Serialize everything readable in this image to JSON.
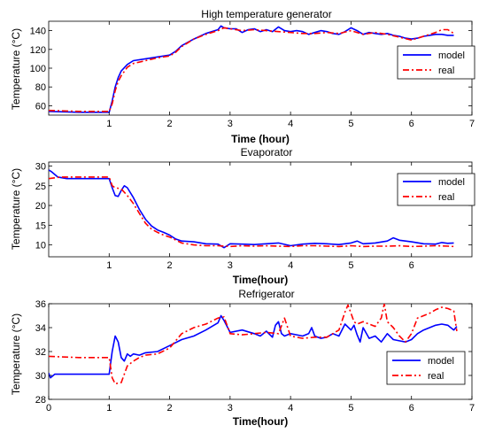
{
  "chart_data": [
    {
      "type": "line",
      "title": "High temperature generator",
      "xlabel": "Time (hour)",
      "ylabel": "Temperature (°C)",
      "xlim": [
        0,
        7
      ],
      "ylim": [
        50,
        150
      ],
      "xticks": [
        1,
        2,
        3,
        4,
        5,
        6,
        7
      ],
      "yticks": [
        60,
        80,
        100,
        120,
        140
      ],
      "legend_position": "right",
      "series": [
        {
          "name": "model",
          "color": "#0000ff",
          "dash": "solid",
          "x": [
            0,
            0.5,
            1.0,
            1.05,
            1.1,
            1.15,
            1.2,
            1.3,
            1.4,
            1.6,
            1.8,
            2.0,
            2.1,
            2.2,
            2.4,
            2.6,
            2.8,
            2.85,
            2.9,
            3.0,
            3.1,
            3.2,
            3.3,
            3.4,
            3.5,
            3.6,
            3.7,
            3.8,
            3.9,
            4.0,
            4.1,
            4.2,
            4.3,
            4.4,
            4.5,
            4.6,
            4.7,
            4.8,
            4.9,
            5.0,
            5.1,
            5.2,
            5.3,
            5.4,
            5.5,
            5.6,
            5.7,
            5.8,
            5.9,
            6.0,
            6.1,
            6.2,
            6.3,
            6.4,
            6.5,
            6.6,
            6.7
          ],
          "y": [
            54,
            53,
            53,
            65,
            80,
            90,
            97,
            104,
            108,
            110,
            112,
            114,
            118,
            124,
            131,
            137,
            141,
            145,
            143,
            142,
            142,
            138,
            141,
            142,
            139,
            141,
            139,
            144,
            140,
            139,
            140,
            139,
            136,
            138,
            140,
            139,
            137,
            136,
            139,
            143,
            140,
            136,
            138,
            137,
            136,
            137,
            135,
            134,
            132,
            131,
            132,
            134,
            135,
            136,
            136,
            135,
            135
          ]
        },
        {
          "name": "real",
          "color": "#ff0000",
          "dash": "dashdot",
          "x": [
            0,
            0.5,
            1.0,
            1.05,
            1.1,
            1.15,
            1.2,
            1.3,
            1.4,
            1.6,
            1.8,
            2.0,
            2.1,
            2.2,
            2.4,
            2.6,
            2.8,
            2.9,
            3.0,
            3.2,
            3.4,
            3.6,
            3.8,
            4.0,
            4.2,
            4.4,
            4.6,
            4.8,
            5.0,
            5.2,
            5.4,
            5.6,
            5.8,
            6.0,
            6.2,
            6.4,
            6.5,
            6.6,
            6.7
          ],
          "y": [
            55,
            54,
            54,
            62,
            76,
            86,
            92,
            101,
            105,
            108,
            111,
            113,
            117,
            123,
            131,
            136,
            140,
            143,
            142,
            140,
            141,
            140,
            139,
            138,
            137,
            137,
            138,
            137,
            140,
            136,
            138,
            136,
            133,
            130,
            134,
            138,
            141,
            141,
            137
          ]
        }
      ]
    },
    {
      "type": "line",
      "title": "Evaporator",
      "xlabel": "Time(hour)",
      "ylabel": "Temperature (°C)",
      "xlim": [
        0,
        7
      ],
      "ylim": [
        7,
        31
      ],
      "xticks": [
        1,
        2,
        3,
        4,
        5,
        6
      ],
      "yticks": [
        10,
        15,
        20,
        25,
        30
      ],
      "legend_position": "top-right",
      "series": [
        {
          "name": "model",
          "color": "#0000ff",
          "dash": "solid",
          "x": [
            0,
            0.05,
            0.15,
            0.3,
            0.5,
            0.8,
            1.0,
            1.05,
            1.1,
            1.15,
            1.2,
            1.25,
            1.3,
            1.4,
            1.5,
            1.6,
            1.7,
            1.8,
            1.9,
            2.0,
            2.1,
            2.2,
            2.4,
            2.6,
            2.8,
            2.9,
            3.0,
            3.2,
            3.4,
            3.6,
            3.8,
            4.0,
            4.2,
            4.4,
            4.6,
            4.8,
            5.0,
            5.1,
            5.2,
            5.4,
            5.6,
            5.7,
            5.8,
            6.0,
            6.2,
            6.4,
            6.5,
            6.6,
            6.7
          ],
          "y": [
            29,
            28.5,
            27.2,
            26.8,
            26.8,
            26.8,
            26.8,
            24.5,
            22.5,
            22.3,
            23.8,
            25,
            24.5,
            22,
            19,
            16.5,
            14.8,
            13.8,
            13.2,
            12.5,
            11.5,
            11,
            10.8,
            10.3,
            10.2,
            9.3,
            10.3,
            10.2,
            10.1,
            10.3,
            10.5,
            9.8,
            10.2,
            10.4,
            10.3,
            10.1,
            10.5,
            11,
            10.3,
            10.5,
            11,
            11.8,
            11.2,
            10.8,
            10.3,
            10.2,
            10.6,
            10.4,
            10.5
          ]
        },
        {
          "name": "real",
          "color": "#ff0000",
          "dash": "dashdot",
          "x": [
            0,
            0.2,
            0.5,
            0.8,
            1.0,
            1.05,
            1.1,
            1.2,
            1.3,
            1.4,
            1.5,
            1.6,
            1.7,
            1.8,
            1.9,
            2.0,
            2.2,
            2.4,
            2.6,
            2.8,
            3.0,
            3.2,
            3.4,
            3.6,
            3.8,
            4.0,
            4.2,
            4.4,
            4.6,
            4.8,
            5.0,
            5.2,
            5.4,
            5.6,
            5.8,
            6.0,
            6.2,
            6.4,
            6.6,
            6.7
          ],
          "y": [
            26.8,
            27.2,
            27.2,
            27.2,
            27.2,
            25,
            24.5,
            24.2,
            22.5,
            20.5,
            18,
            15.5,
            14,
            13.2,
            12.5,
            12,
            10.5,
            10,
            9.8,
            9.8,
            9.6,
            9.8,
            9.7,
            9.8,
            9.7,
            9.6,
            9.8,
            9.8,
            9.7,
            9.6,
            9.8,
            9.6,
            9.7,
            9.7,
            9.8,
            9.6,
            9.7,
            9.8,
            9.7,
            9.6
          ]
        }
      ]
    },
    {
      "type": "line",
      "title": "Refrigerator",
      "xlabel": "Time(hour)",
      "ylabel": "Temperature (°C)",
      "xlim": [
        0,
        7
      ],
      "ylim": [
        28,
        36
      ],
      "xticks": [
        0,
        1,
        2,
        3,
        4,
        5,
        6,
        7
      ],
      "yticks": [
        28,
        30,
        32,
        34,
        36
      ],
      "legend_position": "bottom-right",
      "series": [
        {
          "name": "model",
          "color": "#0000ff",
          "dash": "solid",
          "x": [
            0,
            0.03,
            0.1,
            0.5,
            1.0,
            1.05,
            1.1,
            1.15,
            1.2,
            1.25,
            1.3,
            1.35,
            1.4,
            1.5,
            1.6,
            1.8,
            2.0,
            2.2,
            2.4,
            2.6,
            2.8,
            2.85,
            2.9,
            3.0,
            3.2,
            3.4,
            3.5,
            3.6,
            3.7,
            3.75,
            3.8,
            3.85,
            3.9,
            4.0,
            4.1,
            4.2,
            4.3,
            4.35,
            4.4,
            4.5,
            4.6,
            4.7,
            4.8,
            4.9,
            5.0,
            5.05,
            5.1,
            5.15,
            5.2,
            5.3,
            5.4,
            5.5,
            5.6,
            5.7,
            5.8,
            5.9,
            6.0,
            6.1,
            6.2,
            6.3,
            6.4,
            6.5,
            6.6,
            6.7,
            6.75
          ],
          "y": [
            30.2,
            29.8,
            30.1,
            30.1,
            30.1,
            32,
            33.3,
            32.8,
            31.5,
            31.2,
            31.8,
            31.6,
            31.8,
            31.7,
            31.9,
            32,
            32.5,
            33,
            33.3,
            33.8,
            34.4,
            35,
            34.6,
            33.6,
            33.8,
            33.5,
            33.3,
            33.7,
            33.2,
            34.2,
            34.5,
            33.5,
            33.3,
            33.5,
            33.4,
            33.3,
            33.5,
            34,
            33.3,
            33.1,
            33.2,
            33.5,
            33.3,
            34.3,
            33.8,
            34.2,
            33.4,
            32.8,
            34,
            33.1,
            33.3,
            32.8,
            33.5,
            33,
            32.9,
            32.8,
            33,
            33.5,
            33.8,
            34,
            34.2,
            34.3,
            34.2,
            33.8,
            34.1
          ]
        },
        {
          "name": "real",
          "color": "#ff0000",
          "dash": "dashdot",
          "x": [
            0,
            0.5,
            1.0,
            1.05,
            1.1,
            1.2,
            1.3,
            1.4,
            1.5,
            1.6,
            1.8,
            2.0,
            2.2,
            2.4,
            2.6,
            2.8,
            2.9,
            3.0,
            3.2,
            3.4,
            3.6,
            3.8,
            3.9,
            4.0,
            4.2,
            4.4,
            4.6,
            4.8,
            4.9,
            4.95,
            5.0,
            5.05,
            5.1,
            5.2,
            5.3,
            5.4,
            5.5,
            5.55,
            5.6,
            5.7,
            5.8,
            5.9,
            6.0,
            6.1,
            6.2,
            6.3,
            6.4,
            6.5,
            6.6,
            6.7,
            6.75
          ],
          "y": [
            31.6,
            31.5,
            31.5,
            29.8,
            29.3,
            29.4,
            30.8,
            31.2,
            31.5,
            31.7,
            31.8,
            32.3,
            33.5,
            34,
            34.3,
            34.8,
            34.9,
            33.5,
            33.4,
            33.5,
            33.6,
            33.5,
            34.8,
            33.3,
            33.1,
            33.2,
            33.2,
            33.8,
            35.3,
            35.9,
            35.2,
            34.5,
            34.3,
            34.5,
            34.3,
            34.1,
            34.8,
            36,
            34.5,
            34,
            33.3,
            32.8,
            33.5,
            34.8,
            35,
            35.2,
            35.5,
            35.7,
            35.6,
            35.4,
            33.7
          ]
        }
      ]
    }
  ]
}
